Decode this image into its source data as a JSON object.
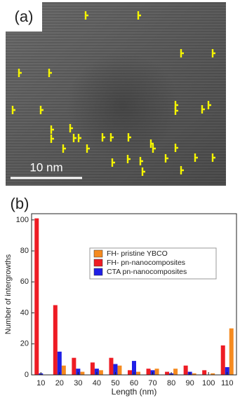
{
  "panel_a": {
    "label": "(a)",
    "scale_bar": "10 nm"
  },
  "chart_data": {
    "type": "bar",
    "panel_label": "(b)",
    "xlabel": "Length (nm)",
    "ylabel": "Number of intergrowths",
    "categories": [
      10,
      20,
      30,
      40,
      50,
      60,
      70,
      80,
      90,
      100,
      110
    ],
    "series": [
      {
        "name": "FH- pristine YBCO",
        "color": "#f58a1f",
        "values": [
          0,
          6,
          2,
          3,
          6,
          2,
          4,
          4,
          1,
          1,
          30
        ]
      },
      {
        "name": "FH- pn-nanocomposites",
        "color": "#ee1c24",
        "values": [
          101,
          45,
          11,
          8,
          11,
          3,
          4,
          2,
          6,
          3,
          19
        ]
      },
      {
        "name": "CTA pn-nanocomposites",
        "color": "#1f1fe6",
        "values": [
          1,
          15,
          4,
          4,
          7,
          9,
          3,
          1,
          2,
          0,
          5
        ]
      }
    ],
    "ylim": [
      0,
      104
    ],
    "yticks": [
      0,
      20,
      40,
      60,
      80,
      100
    ],
    "legend": "upper right"
  }
}
